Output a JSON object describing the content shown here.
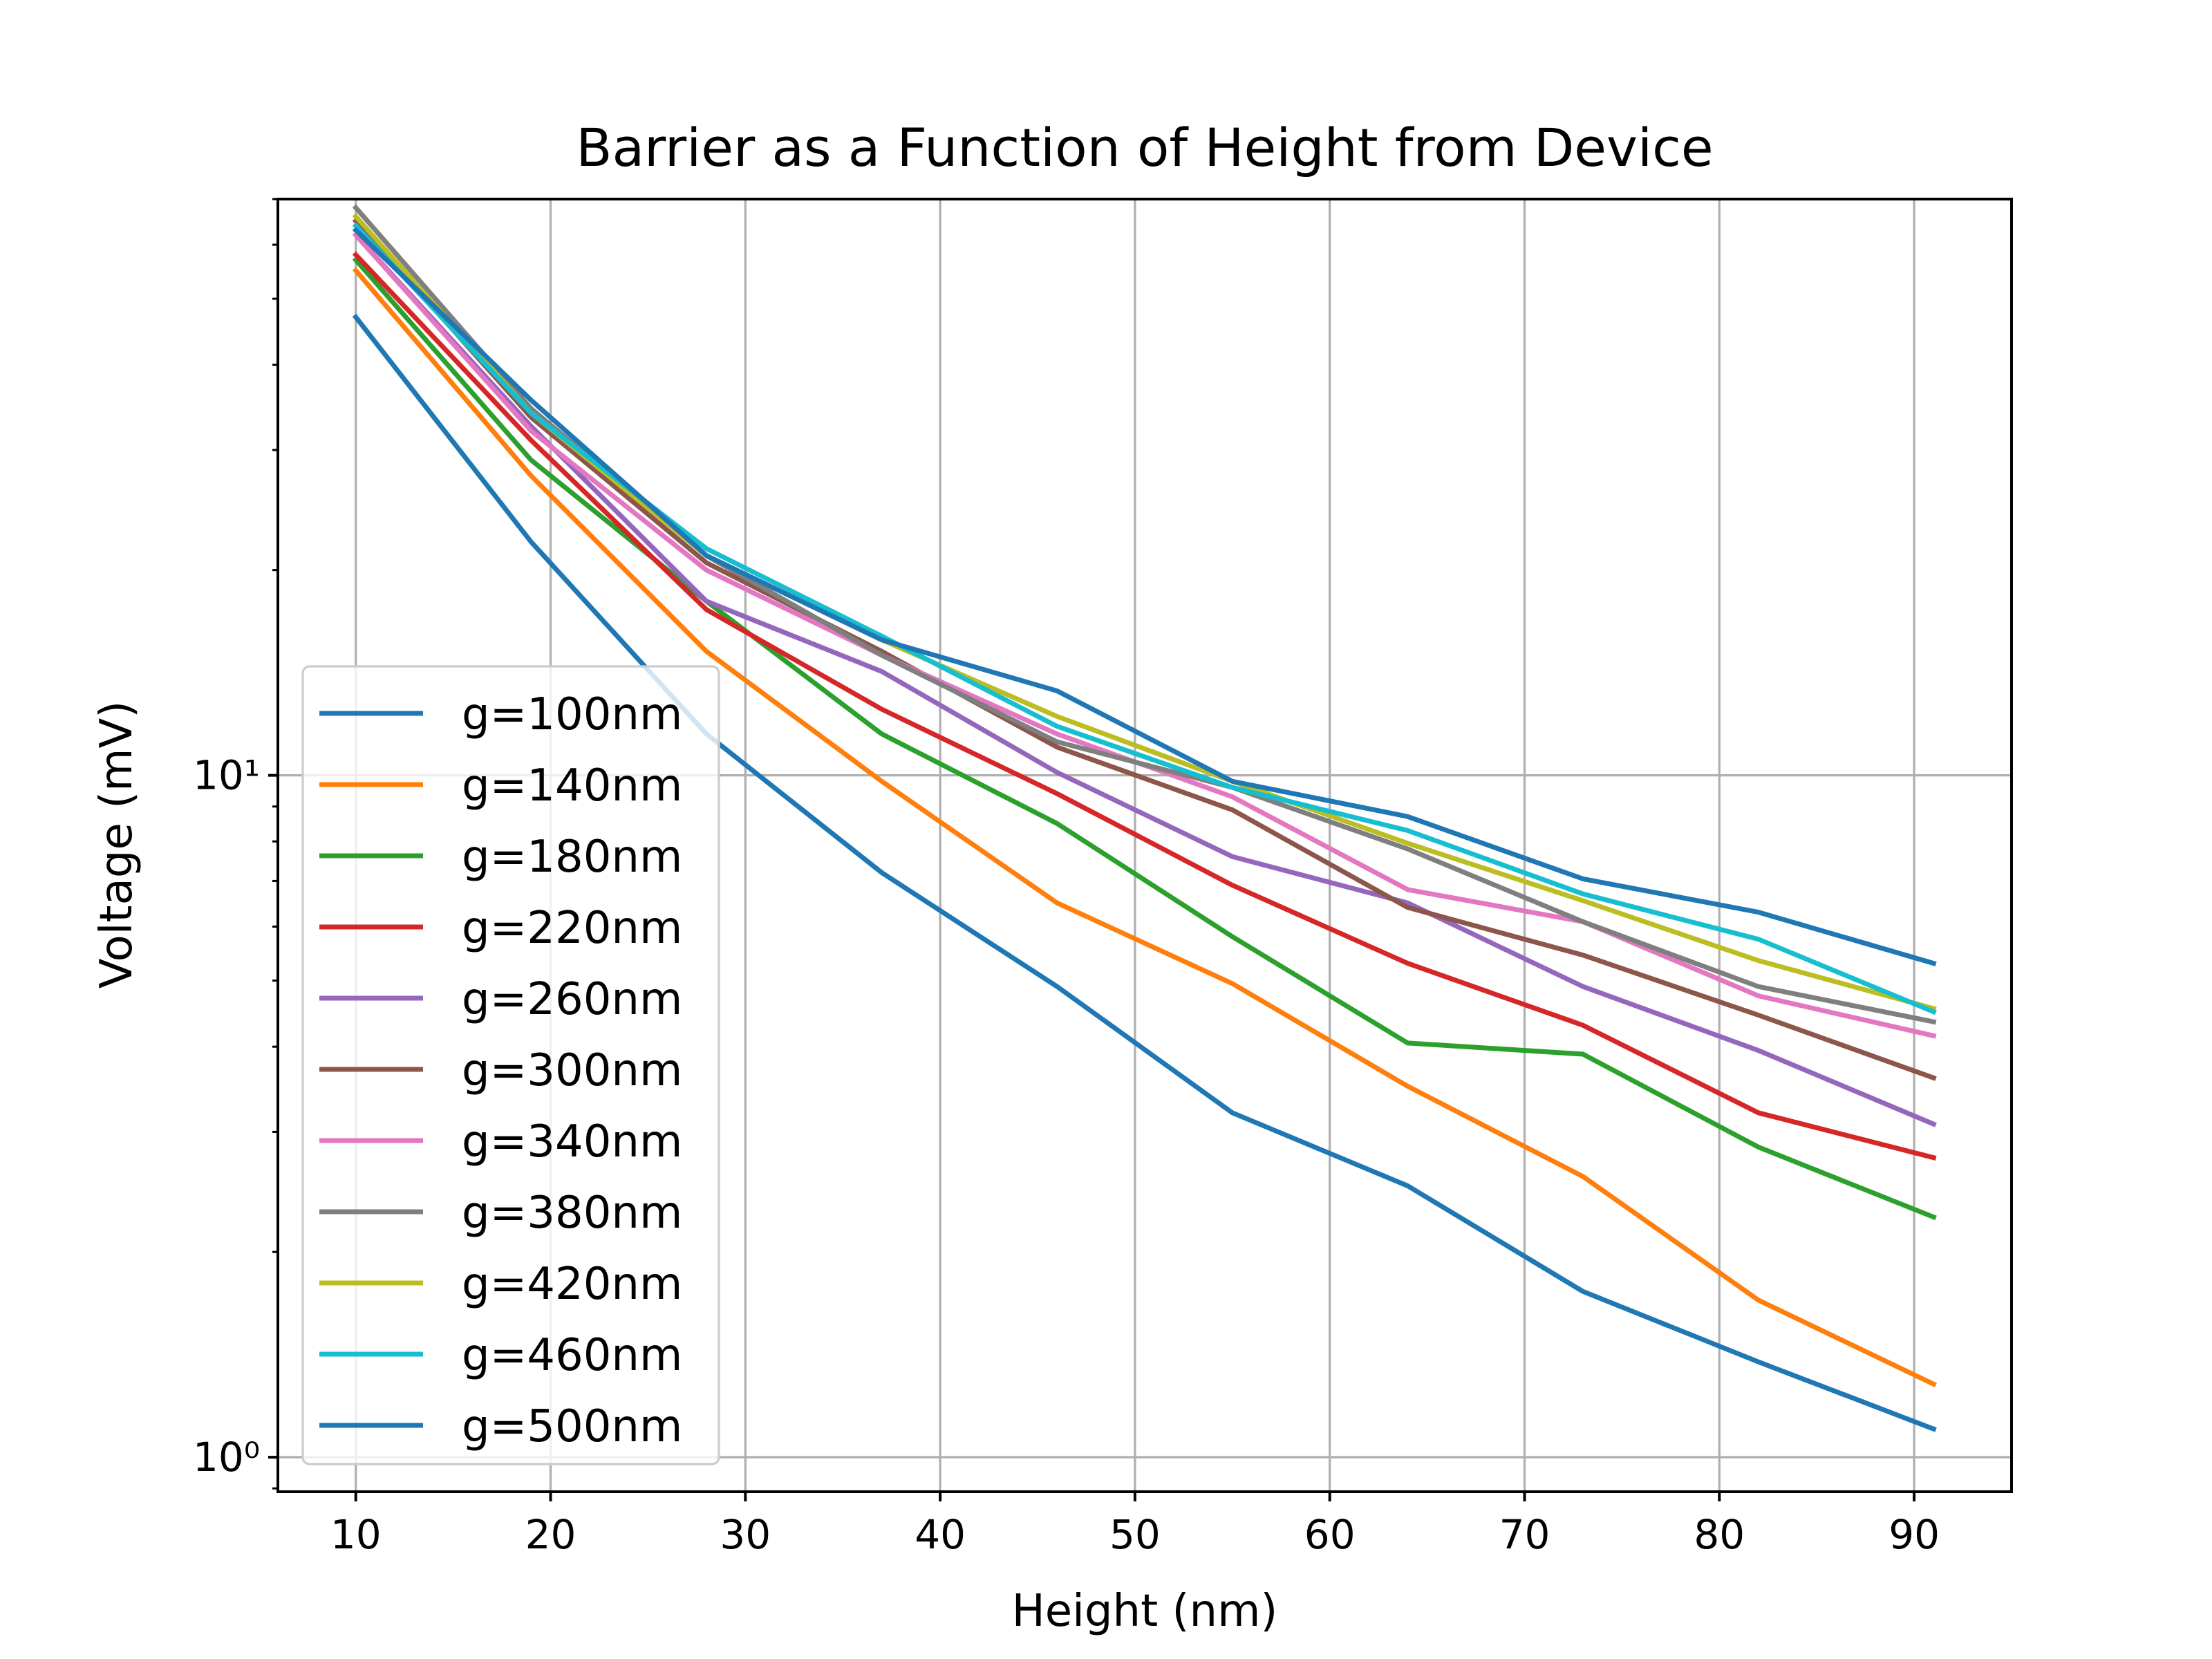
{
  "chart_data": {
    "type": "line",
    "title": "Barrier as a Function of Height from Device",
    "xlabel": "Height (nm)",
    "ylabel": "Voltage (mV)",
    "xscale": "linear",
    "yscale": "log",
    "xlim": [
      6,
      95
    ],
    "ylim": [
      0.89,
      70
    ],
    "grid": true,
    "legend_position": "lower-left",
    "x_ticks": [
      10,
      20,
      30,
      40,
      50,
      60,
      70,
      80,
      90
    ],
    "y_ticks": [
      {
        "value": 1,
        "label": "10⁰"
      },
      {
        "value": 10,
        "label": "10¹"
      }
    ],
    "x": [
      10,
      19,
      28,
      37,
      46,
      55,
      64,
      73,
      82,
      91
    ],
    "series": [
      {
        "name": "g=100nm",
        "color": "#1f77b4",
        "values": [
          47,
          22,
          11.5,
          7.2,
          4.9,
          3.2,
          2.5,
          1.75,
          1.38,
          1.1
        ]
      },
      {
        "name": "g=140nm",
        "color": "#ff7f0e",
        "values": [
          55,
          27.5,
          15.2,
          9.8,
          6.5,
          4.95,
          3.5,
          2.58,
          1.7,
          1.28
        ]
      },
      {
        "name": "g=180nm",
        "color": "#2ca02c",
        "values": [
          57,
          29,
          18,
          11.5,
          8.5,
          5.8,
          4.05,
          3.9,
          2.85,
          2.25
        ]
      },
      {
        "name": "g=220nm",
        "color": "#d62728",
        "values": [
          58,
          31,
          17.5,
          12.5,
          9.4,
          6.9,
          5.3,
          4.3,
          3.2,
          2.75
        ]
      },
      {
        "name": "g=260nm",
        "color": "#9467bd",
        "values": [
          62,
          32.5,
          18,
          14.2,
          10.1,
          7.6,
          6.5,
          4.9,
          3.95,
          3.08
        ]
      },
      {
        "name": "g=300nm",
        "color": "#8c564b",
        "values": [
          65,
          33.5,
          20.5,
          15.2,
          11,
          8.9,
          6.4,
          5.45,
          4.45,
          3.6
        ]
      },
      {
        "name": "g=340nm",
        "color": "#e377c2",
        "values": [
          62,
          32,
          20,
          15,
          11.5,
          9.3,
          6.8,
          6.1,
          4.75,
          4.15
        ]
      },
      {
        "name": "g=380nm",
        "color": "#7f7f7f",
        "values": [
          68,
          34.5,
          21,
          15,
          11.2,
          9.6,
          7.8,
          6.1,
          4.9,
          4.35
        ]
      },
      {
        "name": "g=420nm",
        "color": "#bcbd22",
        "values": [
          66,
          34,
          21,
          15.8,
          12.2,
          9.8,
          7.95,
          6.55,
          5.35,
          4.55
        ]
      },
      {
        "name": "g=460nm",
        "color": "#17becf",
        "values": [
          64,
          34,
          21.5,
          16,
          11.8,
          9.6,
          8.3,
          6.7,
          5.75,
          4.5
        ]
      },
      {
        "name": "g=500nm",
        "color": "#1f77b4",
        "values": [
          63,
          35.5,
          21,
          15.8,
          13.3,
          9.8,
          8.7,
          7.05,
          6.3,
          5.3
        ]
      }
    ]
  }
}
